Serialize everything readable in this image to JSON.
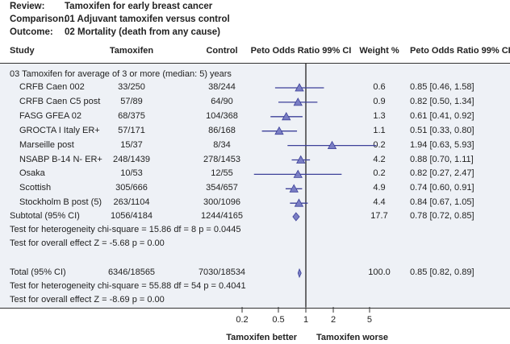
{
  "meta": {
    "review_label": "Review:",
    "review": "Tamoxifen for early breast cancer",
    "comparison_label": "Comparison:",
    "comparison": "01 Adjuvant tamoxifen versus control",
    "outcome_label": "Outcome:",
    "outcome": "02 Mortality (death from any cause)"
  },
  "columns": {
    "study": "Study",
    "tamoxifen": "Tamoxifen",
    "control": "Control",
    "plot": "Peto Odds Ratio 99% CI",
    "weight": "Weight %",
    "ci": "Peto Odds Ratio 99% CI"
  },
  "chart_data": {
    "type": "forest",
    "group": "03 Tamoxifen for average of 3 or more (median: 5) years",
    "scale": "log",
    "xticks": [
      0.2,
      0.5,
      1,
      2,
      5
    ],
    "xtick_labels": [
      "0.2",
      "0.5",
      "1",
      "2",
      "5"
    ],
    "xlim": [
      0.2,
      5
    ],
    "left_label": "Tamoxifen better",
    "right_label": "Tamoxifen worse",
    "colors": {
      "marker_fill": "#7a7ec4",
      "marker_line": "#3d4199",
      "panel": "#eef1f6"
    },
    "studies": [
      {
        "name": "CRFB Caen 002",
        "tamoxifen": "33/250",
        "control": "38/244",
        "weight": "0.6",
        "ci_text": "0.85 [0.46, 1.58]",
        "or": 0.85,
        "lo": 0.46,
        "hi": 1.58
      },
      {
        "name": "CRFB Caen C5 post",
        "tamoxifen": "57/89",
        "control": "64/90",
        "weight": "0.9",
        "ci_text": "0.82 [0.50, 1.34]",
        "or": 0.82,
        "lo": 0.5,
        "hi": 1.34
      },
      {
        "name": "FASG GFEA 02",
        "tamoxifen": "68/375",
        "control": "104/368",
        "weight": "1.3",
        "ci_text": "0.61 [0.41, 0.92]",
        "or": 0.61,
        "lo": 0.41,
        "hi": 0.92
      },
      {
        "name": "GROCTA I Italy ER+",
        "tamoxifen": "57/171",
        "control": "86/168",
        "weight": "1.1",
        "ci_text": "0.51 [0.33, 0.80]",
        "or": 0.51,
        "lo": 0.33,
        "hi": 0.8
      },
      {
        "name": "Marseille post",
        "tamoxifen": "15/37",
        "control": "8/34",
        "weight": "0.2",
        "ci_text": "1.94 [0.63, 5.93]",
        "or": 1.94,
        "lo": 0.63,
        "hi": 5.93
      },
      {
        "name": "NSABP B-14 N- ER+",
        "tamoxifen": "248/1439",
        "control": "278/1453",
        "weight": "4.2",
        "ci_text": "0.88 [0.70, 1.11]",
        "or": 0.88,
        "lo": 0.7,
        "hi": 1.11
      },
      {
        "name": "Osaka",
        "tamoxifen": "10/53",
        "control": "12/55",
        "weight": "0.2",
        "ci_text": "0.82 [0.27, 2.47]",
        "or": 0.82,
        "lo": 0.27,
        "hi": 2.47
      },
      {
        "name": "Scottish",
        "tamoxifen": "305/666",
        "control": "354/657",
        "weight": "4.9",
        "ci_text": "0.74 [0.60, 0.91]",
        "or": 0.74,
        "lo": 0.6,
        "hi": 0.91
      },
      {
        "name": "Stockholm B post (5)",
        "tamoxifen": "263/1104",
        "control": "300/1096",
        "weight": "4.4",
        "ci_text": "0.84 [0.67, 1.05]",
        "or": 0.84,
        "lo": 0.67,
        "hi": 1.05
      }
    ],
    "subtotal": {
      "name": "Subtotal (95% CI)",
      "tamoxifen": "1056/4184",
      "control": "1244/4165",
      "weight": "17.7",
      "ci_text": "0.78 [0.72, 0.85]",
      "or": 0.78,
      "lo": 0.72,
      "hi": 0.85,
      "heterogeneity": "Test for heterogeneity chi-square = 15.86 df = 8 p = 0.0445",
      "overall": "Test for overall effect Z = -5.68 p = 0.00"
    },
    "total": {
      "name": "Total (95% CI)",
      "tamoxifen": "6346/18565",
      "control": "7030/18534",
      "weight": "100.0",
      "ci_text": "0.85 [0.82, 0.89]",
      "or": 0.85,
      "lo": 0.82,
      "hi": 0.89,
      "heterogeneity": "Test for heterogeneity chi-square = 55.88 df = 54 p = 0.4041",
      "overall": "Test for overall effect Z = -8.69 p = 0.00"
    }
  }
}
